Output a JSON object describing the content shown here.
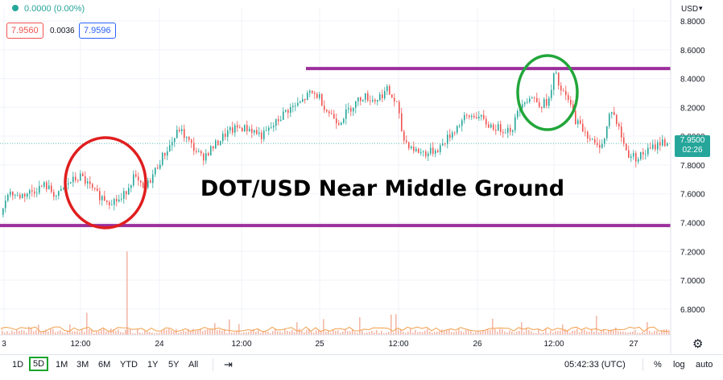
{
  "header": {
    "change": "0.0000 (0.00%)",
    "bid": "7.9560",
    "spread": "0.0036",
    "ask": "7.9596",
    "currency": "USD"
  },
  "price_label": {
    "value": "7.9500",
    "countdown": "02:26"
  },
  "overlay_title": "DOT/USD Near Middle Ground",
  "timeframes": [
    "1D",
    "5D",
    "1M",
    "3M",
    "6M",
    "YTD",
    "1Y",
    "5Y",
    "All"
  ],
  "selected_timeframe": "5D",
  "clock": "05:42:33 (UTC)",
  "scale_buttons": {
    "percent": "%",
    "log": "log",
    "auto": "auto"
  },
  "colors": {
    "up": "#26a69a",
    "down": "#ef5350",
    "support_line": "#9c2f9c",
    "red_circle": "#e01e1e",
    "green_circle": "#22a63a",
    "price_label_bg": "#26a69a",
    "volume": "#f4b8a8",
    "volume_line": "#f29f4b"
  },
  "chart_data": {
    "type": "candlestick",
    "title": "DOT/USD Near Middle Ground",
    "y_axis": {
      "ylim": [
        6.62,
        8.89
      ],
      "ticks": [
        6.8,
        7.0,
        7.2,
        7.4,
        7.6,
        7.8,
        8.0,
        8.2,
        8.4,
        8.6,
        8.8
      ],
      "tick_labels": [
        "6.8000",
        "7.0000",
        "7.2000",
        "7.4000",
        "7.6000",
        "7.8000",
        "8.0000",
        "8.2000",
        "8.4000",
        "8.6000",
        "8.8000"
      ],
      "unit": "USD"
    },
    "x_axis": {
      "labels": [
        "3",
        "12:00",
        "24",
        "12:00",
        "25",
        "12:00",
        "26",
        "12:00",
        "27"
      ]
    },
    "horizontal_lines": [
      {
        "role": "resistance",
        "y": 8.47,
        "x_start_label": "25"
      },
      {
        "role": "support",
        "y": 7.38,
        "x_start_label": "3"
      }
    ],
    "annotations": [
      {
        "shape": "circle",
        "color": "red",
        "around_price": 7.65
      },
      {
        "shape": "circle",
        "color": "green",
        "around_price": 8.3
      }
    ],
    "path_points": [
      [
        0,
        7.4
      ],
      [
        8,
        7.62
      ],
      [
        22,
        7.58
      ],
      [
        40,
        7.62
      ],
      [
        55,
        7.66
      ],
      [
        70,
        7.58
      ],
      [
        85,
        7.68
      ],
      [
        100,
        7.72
      ],
      [
        118,
        7.6
      ],
      [
        135,
        7.55
      ],
      [
        150,
        7.56
      ],
      [
        165,
        7.72
      ],
      [
        178,
        7.62
      ],
      [
        188,
        7.72
      ],
      [
        200,
        7.85
      ],
      [
        212,
        7.95
      ],
      [
        222,
        8.05
      ],
      [
        235,
        7.95
      ],
      [
        250,
        7.85
      ],
      [
        265,
        7.93
      ],
      [
        280,
        8.02
      ],
      [
        295,
        8.06
      ],
      [
        310,
        8.05
      ],
      [
        325,
        8.0
      ],
      [
        340,
        8.08
      ],
      [
        355,
        8.18
      ],
      [
        370,
        8.22
      ],
      [
        385,
        8.3
      ],
      [
        395,
        8.28
      ],
      [
        405,
        8.18
      ],
      [
        420,
        8.1
      ],
      [
        435,
        8.2
      ],
      [
        450,
        8.28
      ],
      [
        465,
        8.25
      ],
      [
        480,
        8.32
      ],
      [
        492,
        8.22
      ],
      [
        500,
        7.98
      ],
      [
        515,
        7.9
      ],
      [
        530,
        7.88
      ],
      [
        545,
        7.92
      ],
      [
        560,
        8.02
      ],
      [
        575,
        8.12
      ],
      [
        590,
        8.15
      ],
      [
        605,
        8.08
      ],
      [
        620,
        8.05
      ],
      [
        635,
        8.05
      ],
      [
        648,
        8.25
      ],
      [
        660,
        8.27
      ],
      [
        672,
        8.22
      ],
      [
        682,
        8.25
      ],
      [
        688,
        8.45
      ],
      [
        695,
        8.32
      ],
      [
        705,
        8.25
      ],
      [
        715,
        8.1
      ],
      [
        728,
        8.02
      ],
      [
        740,
        7.92
      ],
      [
        750,
        7.98
      ],
      [
        758,
        8.2
      ],
      [
        768,
        8.05
      ],
      [
        778,
        7.88
      ],
      [
        790,
        7.85
      ],
      [
        805,
        7.9
      ],
      [
        820,
        7.96
      ],
      [
        835,
        7.95
      ]
    ],
    "volume_spike_price": 7.2
  }
}
